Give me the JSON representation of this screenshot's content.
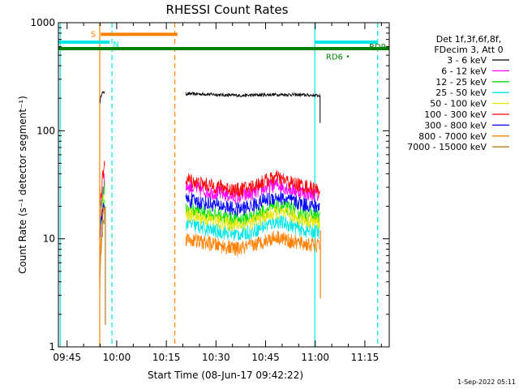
{
  "chart_data": {
    "type": "line",
    "title": "RHESSI Count Rates",
    "xlabel": "Start Time (08-Jun-17 09:42:22)",
    "ylabel": "Count Rate (s⁻¹ detector segment⁻¹)",
    "y_scale": "log",
    "ylim": [
      1,
      1000
    ],
    "x_units": "minutes after 09:42:22",
    "xlim": [
      0,
      100
    ],
    "x_ticks": [
      {
        "label": "09:45",
        "x": 2.63
      },
      {
        "label": "10:00",
        "x": 17.63
      },
      {
        "label": "10:15",
        "x": 32.63
      },
      {
        "label": "10:30",
        "x": 47.63
      },
      {
        "label": "10:45",
        "x": 62.63
      },
      {
        "label": "11:00",
        "x": 77.63
      },
      {
        "label": "11:15",
        "x": 92.63
      }
    ],
    "y_ticks": [
      {
        "label": "1",
        "y": 1
      },
      {
        "label": "10",
        "y": 10
      },
      {
        "label": "100",
        "y": 100
      },
      {
        "label": "1000",
        "y": 1000
      }
    ],
    "legend": {
      "header": [
        "Det 1f,3f,6f,8f,",
        "FDecim 3, Att 0"
      ],
      "entries": [
        {
          "label": "3 - 6 keV",
          "color": "#000000"
        },
        {
          "label": "6 - 12 keV",
          "color": "#ff00ff"
        },
        {
          "label": "12 - 25 keV",
          "color": "#00dd00"
        },
        {
          "label": "25 - 50 keV",
          "color": "#00e5e5"
        },
        {
          "label": "50 - 100 keV",
          "color": "#e6e600"
        },
        {
          "label": "100 - 300 keV",
          "color": "#ff0000"
        },
        {
          "label": "300 - 800 keV",
          "color": "#0000ff"
        },
        {
          "label": "800 - 7000 keV",
          "color": "#ff8000"
        },
        {
          "label": "7000 - 15000 keV",
          "color": "#b08020"
        }
      ]
    },
    "series": [
      {
        "name": "3 - 6 keV",
        "color": "#000000",
        "segments": [
          {
            "x": [
              12.6,
              13.0,
              13.5,
              14.0
            ],
            "y": [
              185,
              220,
              225,
              228
            ]
          },
          {
            "x": [
              38.5,
              45,
              50,
              55,
              60,
              65,
              70,
              75,
              79
            ],
            "y": [
              220,
              218,
              214,
              212,
              214,
              216,
              216,
              214,
              212
            ]
          }
        ],
        "end_drop": {
          "x": 79.1,
          "y": 118
        }
      },
      {
        "name": "6 - 12 keV",
        "color": "#ff00ff",
        "segments": [
          {
            "x": [
              12.6,
              13.1,
              13.6,
              14.0
            ],
            "y": [
              14,
              24,
              32,
              38
            ]
          },
          {
            "x": [
              38.5,
              42,
              46,
              50,
              54,
              58,
              62,
              66,
              70,
              74,
              79
            ],
            "y": [
              31,
              29,
              27,
              26,
              24,
              26,
              29,
              32,
              29,
              27,
              25
            ]
          }
        ]
      },
      {
        "name": "12 - 25 keV",
        "color": "#00dd00",
        "segments": [
          {
            "x": [
              12.6,
              13.1,
              13.6,
              14.0
            ],
            "y": [
              13,
              20,
              26,
              30
            ]
          },
          {
            "x": [
              38.5,
              42,
              46,
              50,
              54,
              58,
              62,
              66,
              70,
              74,
              79
            ],
            "y": [
              19,
              18,
              17,
              16,
              15,
              16,
              18,
              20,
              19,
              17,
              16
            ]
          }
        ]
      },
      {
        "name": "25 - 50 keV",
        "color": "#00e5e5",
        "segments": [
          {
            "x": [
              12.6,
              13.1,
              13.6,
              14.0
            ],
            "y": [
              12,
              16,
              20,
              22
            ]
          },
          {
            "x": [
              38.5,
              42,
              46,
              50,
              54,
              58,
              62,
              66,
              70,
              74,
              79
            ],
            "y": [
              14,
              13,
              12,
              11.5,
              11,
              11.5,
              13,
              14.5,
              13.5,
              12,
              11.5
            ]
          }
        ]
      },
      {
        "name": "50 - 100 keV",
        "color": "#e6e600",
        "segments": [
          {
            "x": [
              12.6,
              13.1,
              13.6,
              14.0
            ],
            "y": [
              12,
              18,
              22,
              25
            ]
          },
          {
            "x": [
              38.5,
              42,
              46,
              50,
              54,
              58,
              62,
              66,
              70,
              74,
              79
            ],
            "y": [
              17,
              16,
              15,
              14,
              13.5,
              14,
              16,
              17.5,
              16.5,
              15,
              14
            ]
          }
        ]
      },
      {
        "name": "100 - 300 keV",
        "color": "#ff0000",
        "segments": [
          {
            "x": [
              12.6,
              13.1,
              13.6,
              14.0
            ],
            "y": [
              20,
              30,
              40,
              48
            ]
          },
          {
            "x": [
              38.5,
              42,
              46,
              50,
              54,
              58,
              62,
              66,
              70,
              74,
              79
            ],
            "y": [
              36,
              33,
              31,
              30,
              28,
              30,
              34,
              37,
              33,
              31,
              28
            ]
          }
        ]
      },
      {
        "name": "300 - 800 keV",
        "color": "#0000ff",
        "segments": [
          {
            "x": [
              12.6,
              13.1,
              13.6,
              14.0
            ],
            "y": [
              11,
              15,
              19,
              22
            ]
          },
          {
            "x": [
              38.5,
              42,
              46,
              50,
              54,
              58,
              62,
              66,
              70,
              74,
              79
            ],
            "y": [
              23,
              22,
              21,
              20,
              18.5,
              20,
              22.5,
              24.5,
              22.5,
              21,
              19.5
            ]
          }
        ]
      },
      {
        "name": "800 - 7000 keV",
        "color": "#ff8000",
        "segments": [
          {
            "x": [
              12.6,
              13.1,
              13.6,
              14.0
            ],
            "y": [
              6,
              12,
              18,
              22
            ]
          },
          {
            "x": [
              38.5,
              42,
              46,
              50,
              54,
              58,
              62,
              66,
              70,
              74,
              79
            ],
            "y": [
              10,
              9.5,
              9,
              8.5,
              8,
              8.5,
              9.5,
              10.5,
              9.5,
              9,
              8.5
            ]
          }
        ]
      },
      {
        "name": "7000 - 15000 keV",
        "color": "#b08020",
        "segments": [
          {
            "x": [
              12.6,
              13.0,
              13.5,
              14.0
            ],
            "y": [
              5,
              9,
              13,
              16
            ]
          }
        ]
      }
    ],
    "spikes": [
      {
        "color": "#ff8000",
        "x": 12.55,
        "y_from": 3.5,
        "y_to": 30
      },
      {
        "color": "#b08020",
        "x": 14.2,
        "y_from": 1.6,
        "y_to": 20
      },
      {
        "color": "#ff8000",
        "x": 79.2,
        "y_from": 2.8,
        "y_to": 12
      }
    ],
    "attenuator_bars": [
      {
        "label": "S",
        "color": "#ff8000",
        "x_from": 12.8,
        "x_to": 36.0,
        "y": 780
      },
      {
        "label": "N",
        "color": "#00e5e5",
        "x_from": 0,
        "x_to": 15.5,
        "y": 660
      },
      {
        "label": "",
        "color": "#00e5e5",
        "x_from": 77.5,
        "x_to": 96.5,
        "y": 660
      },
      {
        "label": "RD9",
        "color": "#008000",
        "x_from": 0,
        "x_to": 100,
        "y": 575
      }
    ],
    "point_annotations": [
      {
        "label": "RD6",
        "color": "#008000",
        "x": 86.5,
        "y": 505
      }
    ],
    "vlines": [
      {
        "x": 0.55,
        "color": "#00e5e5",
        "style": "solid"
      },
      {
        "x": 12.5,
        "color": "#ff8000",
        "style": "solid"
      },
      {
        "x": 16.2,
        "color": "#00e5e5",
        "style": "dashed"
      },
      {
        "x": 35.2,
        "color": "#ff8000",
        "style": "dashed"
      },
      {
        "x": 77.5,
        "color": "#00e5e5",
        "style": "solid"
      },
      {
        "x": 96.5,
        "color": "#00e5e5",
        "style": "dashed"
      }
    ]
  },
  "footer": {
    "timestamp": "1-Sep-2022 05:11"
  }
}
